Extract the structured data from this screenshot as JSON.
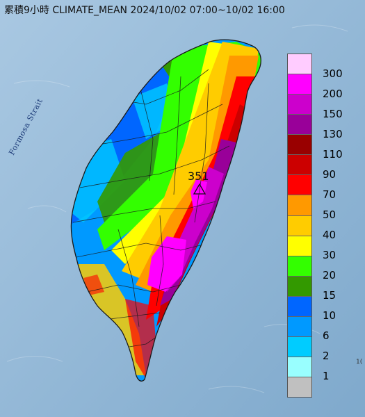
{
  "title": "累積9小時 CLIMATE_MEAN 2024/10/02 07:00~10/02 16:00",
  "map": {
    "water_label": "Formosa Strait",
    "peak_value": "351",
    "peak_marker": "triangle-icon",
    "corner_text": "1("
  },
  "legend": {
    "bins": [
      {
        "label": "300",
        "color": "#ffccff"
      },
      {
        "label": "200",
        "color": "#ff00ff"
      },
      {
        "label": "150",
        "color": "#cc00cc"
      },
      {
        "label": "130",
        "color": "#990099"
      },
      {
        "label": "110",
        "color": "#990000"
      },
      {
        "label": "90",
        "color": "#cc0000"
      },
      {
        "label": "70",
        "color": "#ff0000"
      },
      {
        "label": "50",
        "color": "#ff9900"
      },
      {
        "label": "40",
        "color": "#ffcc00"
      },
      {
        "label": "30",
        "color": "#ffff00"
      },
      {
        "label": "20",
        "color": "#33ff00"
      },
      {
        "label": "15",
        "color": "#339900"
      },
      {
        "label": "10",
        "color": "#0066ff"
      },
      {
        "label": "6",
        "color": "#0099ff"
      },
      {
        "label": "2",
        "color": "#00ccff"
      },
      {
        "label": "1",
        "color": "#99ffff"
      },
      {
        "label": "",
        "color": "#c0c0c0"
      }
    ]
  }
}
